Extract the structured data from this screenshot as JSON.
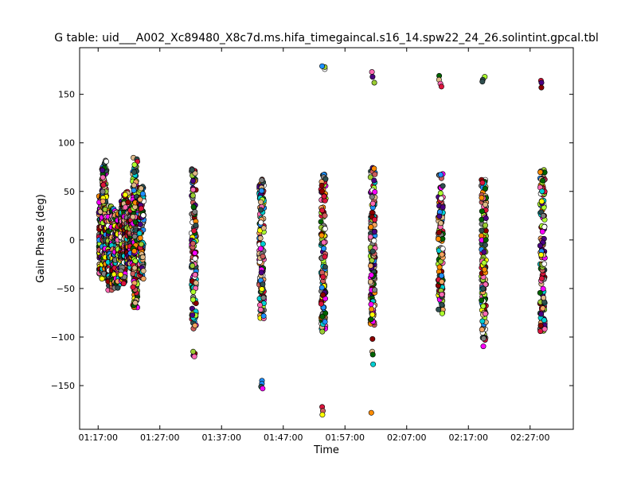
{
  "chart_data": {
    "type": "scatter",
    "title": "G table: uid___A002_Xc89480_X8c7d.ms.hifa_timegaincal.s16_14.spw22_24_26.solintint.gpcal.tbl",
    "xlabel": "Time",
    "ylabel": "Gain Phase (deg)",
    "xlim": [
      "01:14:00",
      "02:34:00"
    ],
    "ylim": [
      -195,
      198
    ],
    "x_ticks": [
      "01:17:00",
      "01:27:00",
      "01:37:00",
      "01:47:00",
      "01:57:00",
      "02:07:00",
      "02:17:00",
      "02:27:00"
    ],
    "y_ticks": [
      -150,
      -100,
      -50,
      0,
      50,
      100,
      150
    ],
    "grid": false,
    "marker": "circle",
    "colors": [
      "#1e90ff",
      "#ffff00",
      "#00ced1",
      "#ff69b4",
      "#4b0082",
      "#808080",
      "#cd5c5c",
      "#ff8c00",
      "#9acd32",
      "#ff00ff",
      "#006400",
      "#f4a460",
      "#dc143c",
      "#adff2f",
      "#ffffff",
      "#2f4f4f",
      "#8b0000",
      "#deb887"
    ],
    "scans": [
      {
        "time": "01:17:30",
        "ymin": -35,
        "ymax": 47
      },
      {
        "time": "01:18:00",
        "ymin": -40,
        "ymax": 82
      },
      {
        "time": "01:18:30",
        "ymin": -30,
        "ymax": 35
      },
      {
        "time": "01:19:00",
        "ymin": -52,
        "ymax": 35
      },
      {
        "time": "01:19:30",
        "ymin": -45,
        "ymax": 32
      },
      {
        "time": "01:20:00",
        "ymin": -50,
        "ymax": 30
      },
      {
        "time": "01:20:30",
        "ymin": -30,
        "ymax": 28
      },
      {
        "time": "01:21:00",
        "ymin": -45,
        "ymax": 40
      },
      {
        "time": "01:21:30",
        "ymin": -20,
        "ymax": 50
      },
      {
        "time": "01:22:00",
        "ymin": -25,
        "ymax": 28
      },
      {
        "time": "01:22:30",
        "ymin": -30,
        "ymax": 35
      },
      {
        "time": "01:23:00",
        "ymin": -70,
        "ymax": 85
      },
      {
        "time": "01:24:00",
        "ymin": -40,
        "ymax": 55
      },
      {
        "time": "01:32:30",
        "ymin": -92,
        "ymax": 74
      },
      {
        "time": "01:43:30",
        "ymin": -82,
        "ymax": 64
      },
      {
        "time": "01:53:30",
        "ymin": -96,
        "ymax": 70
      },
      {
        "time": "02:01:30",
        "ymin": -88,
        "ymax": 75
      },
      {
        "time": "02:12:30",
        "ymin": -76,
        "ymax": 70
      },
      {
        "time": "02:19:30",
        "ymin": -110,
        "ymax": 62
      },
      {
        "time": "02:29:00",
        "ymin": -94,
        "ymax": 74
      }
    ],
    "outliers": [
      {
        "time": "01:32:30",
        "values": [
          -119,
          -117,
          -115,
          -120
        ]
      },
      {
        "time": "01:43:30",
        "values": [
          -145,
          -148,
          -151,
          -153
        ]
      },
      {
        "time": "01:53:30",
        "values": [
          176,
          178,
          179,
          -172,
          -176,
          -180
        ]
      },
      {
        "time": "02:01:30",
        "values": [
          173,
          168,
          162,
          -102,
          -115,
          -118,
          -128,
          -178
        ]
      },
      {
        "time": "02:12:30",
        "values": [
          169,
          165,
          161,
          158
        ]
      },
      {
        "time": "02:19:30",
        "values": [
          168,
          165,
          163
        ]
      },
      {
        "time": "02:29:00",
        "values": [
          164,
          162,
          157
        ]
      }
    ]
  }
}
